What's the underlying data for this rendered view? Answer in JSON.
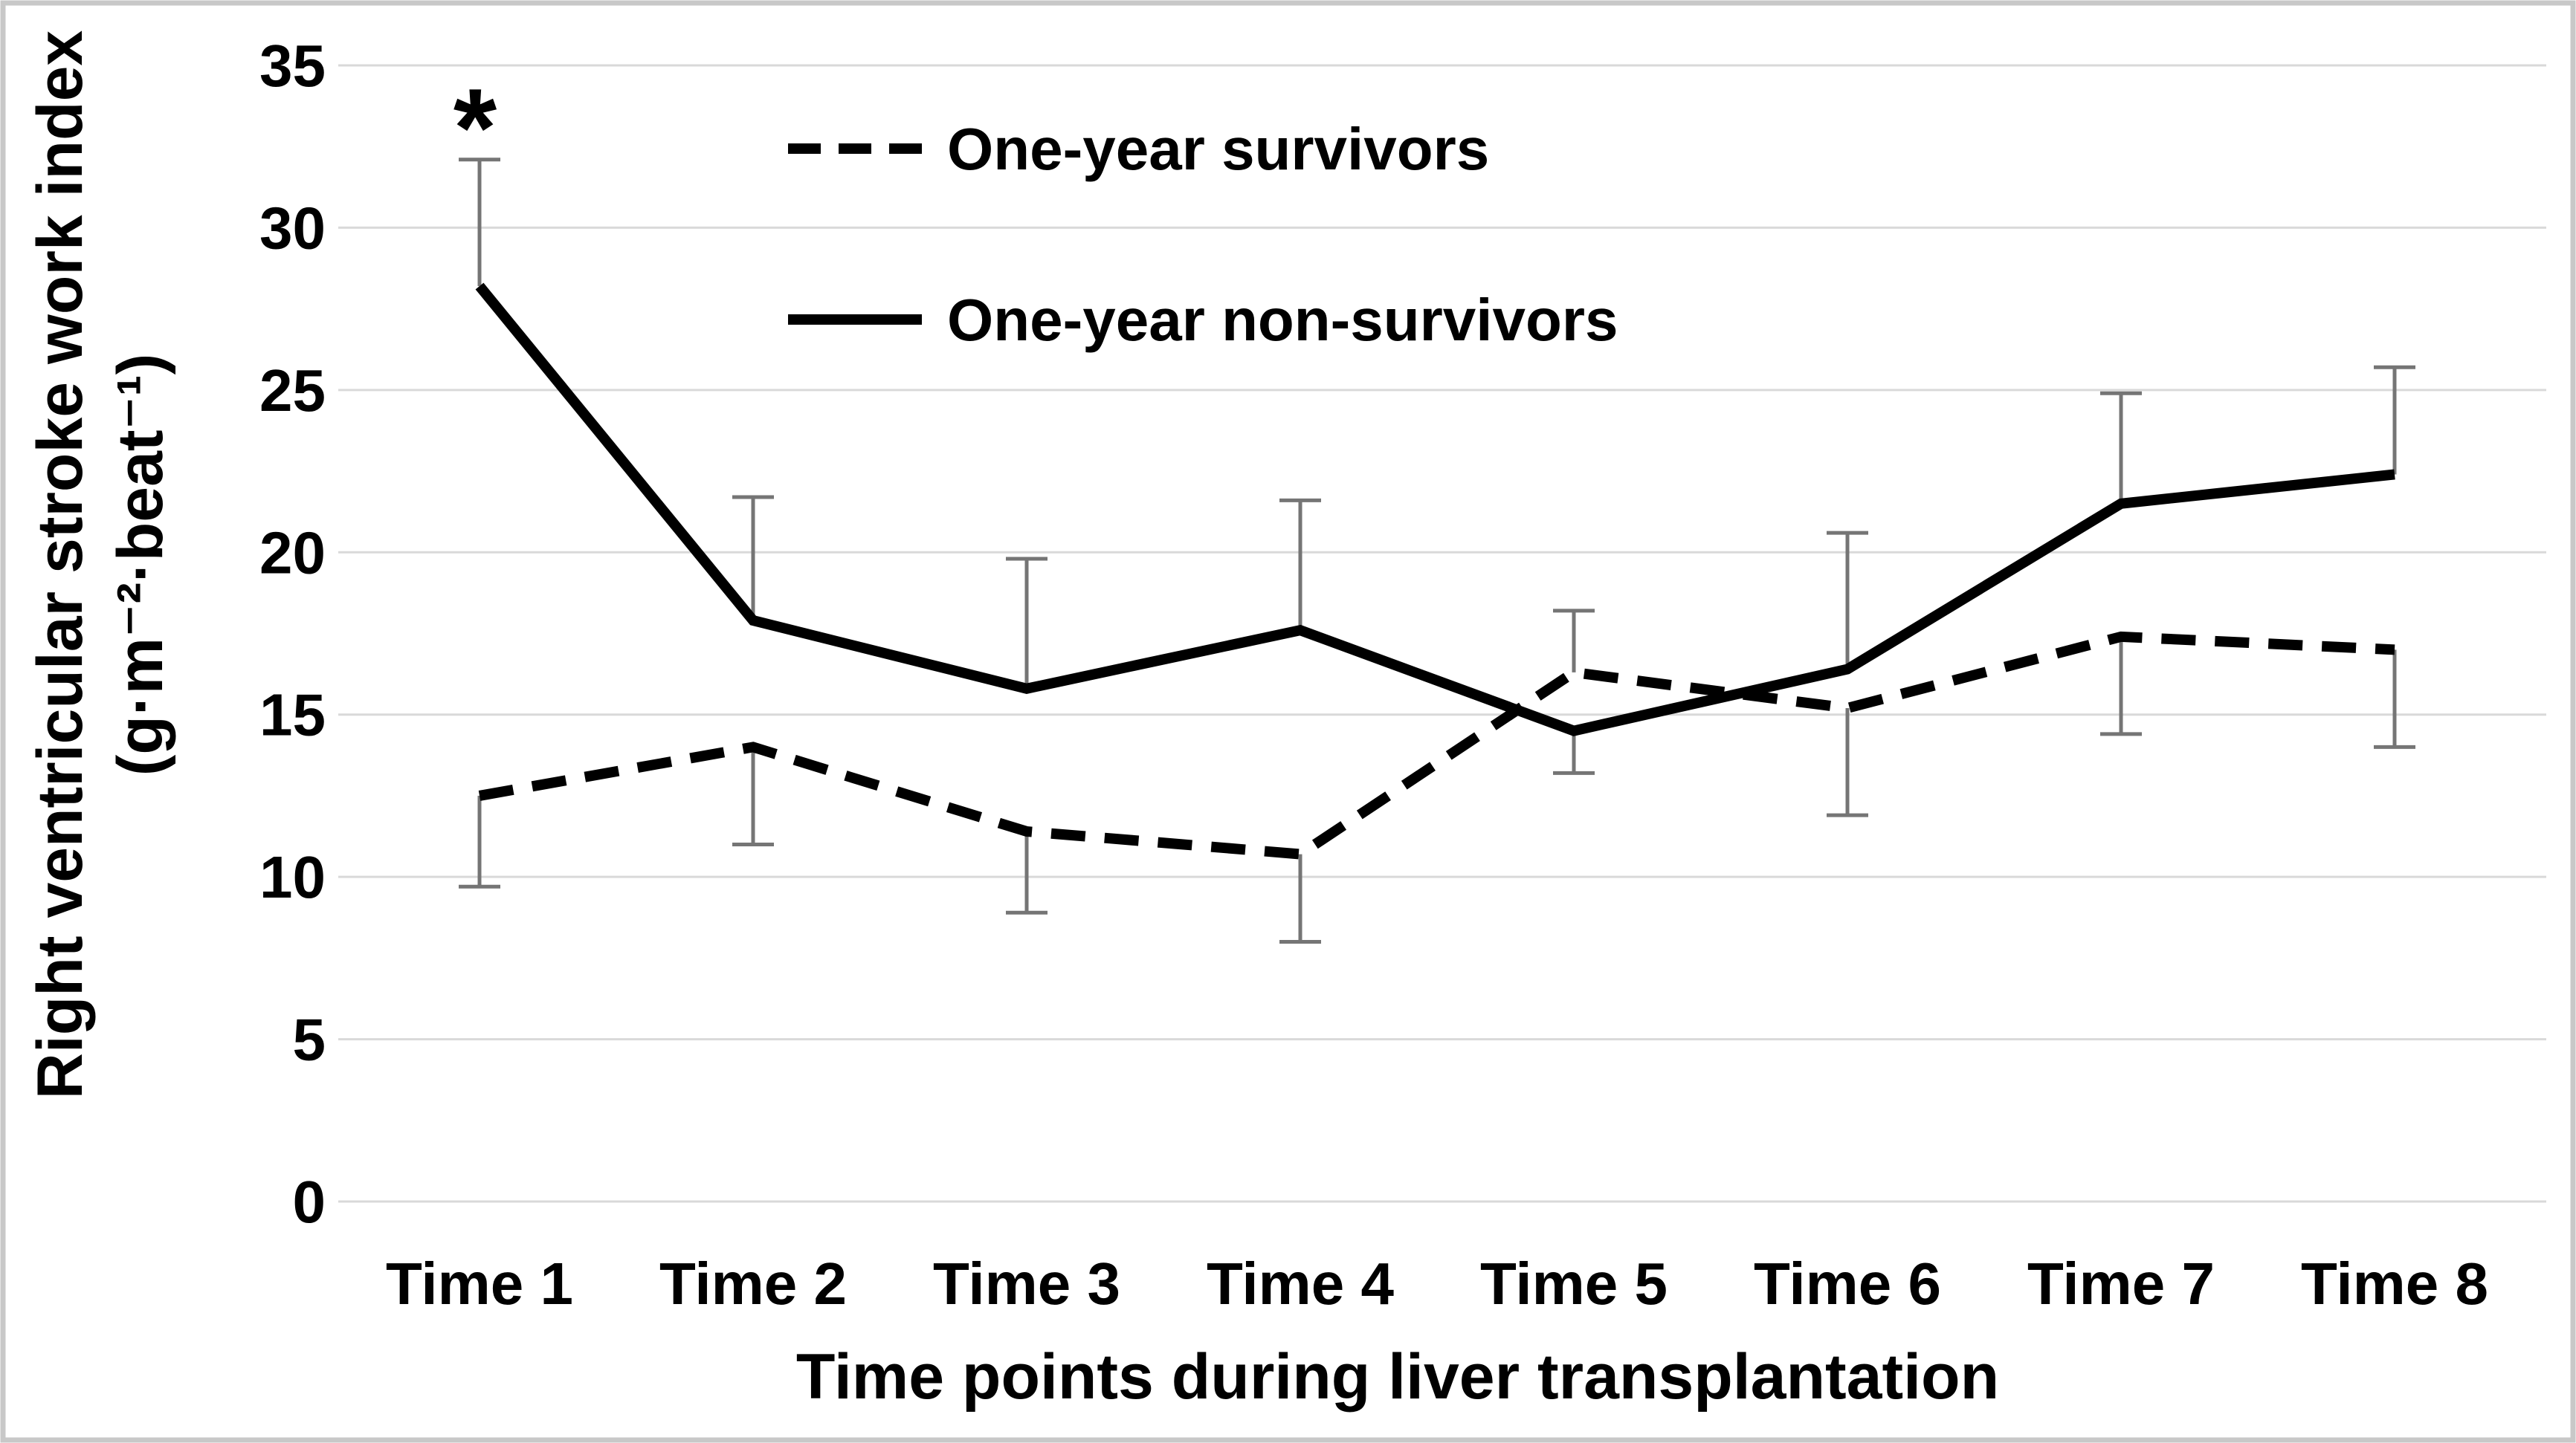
{
  "figure": {
    "kind": "published-journal-figure",
    "background": "#ffffff",
    "border_color": "#c8c8c8"
  },
  "chart_data": {
    "type": "line",
    "title": "",
    "xlabel": "Time points during liver transplantation",
    "ylabel_line1": "Right ventricular stroke work index",
    "ylabel_line2": "(g·m⁻²·beat⁻¹)",
    "ylim": [
      0,
      35
    ],
    "ytick_step": 5,
    "yticks": [
      "35",
      "30",
      "25",
      "20",
      "15",
      "10",
      "5",
      "0"
    ],
    "grid": "horizontal-only",
    "grid_color": "#d9d9d9",
    "categories": [
      "Time 1",
      "Time 2",
      "Time 3",
      "Time 4",
      "Time 5",
      "Time 6",
      "Time 7",
      "Time 8"
    ],
    "legend_position": "inside-top-left",
    "series": [
      {
        "name": "One-year survivors",
        "line_style": "dashed",
        "color": "#000000",
        "values": [
          12.5,
          14.0,
          11.4,
          10.7,
          16.3,
          15.2,
          17.4,
          17.0
        ],
        "error_bars": [
          -2.8,
          -3.0,
          -2.5,
          -2.7,
          1.9,
          -3.3,
          -3.0,
          -3.0
        ]
      },
      {
        "name": "One-year non-survivors",
        "line_style": "solid",
        "color": "#000000",
        "values": [
          28.2,
          17.9,
          15.8,
          17.6,
          14.5,
          16.4,
          21.5,
          22.4
        ],
        "error_bars": [
          3.9,
          3.8,
          4.0,
          4.0,
          -1.3,
          4.2,
          3.4,
          3.3
        ]
      }
    ],
    "error_bar_color": "#757575",
    "annotations": [
      {
        "text": "*",
        "category": "Time 1",
        "y": 33.5
      }
    ]
  }
}
